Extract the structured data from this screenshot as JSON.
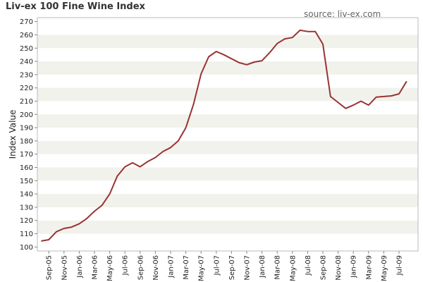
{
  "chart_data": {
    "type": "line",
    "title": "Liv-ex 100 Fine Wine Index",
    "subtitle": "source: liv-ex.com",
    "xlabel": "",
    "ylabel": "Index Value",
    "ylim": [
      97,
      273
    ],
    "yticks": [
      100,
      110,
      120,
      130,
      140,
      150,
      160,
      170,
      180,
      190,
      200,
      210,
      220,
      230,
      240,
      250,
      260,
      270
    ],
    "xtick_labels": [
      "Sep-05",
      "Nov-05",
      "Jan-06",
      "Mar-06",
      "May-06",
      "Jul-06",
      "Sep-06",
      "Nov-06",
      "Jan-07",
      "Mar-07",
      "May-07",
      "Jul-07",
      "Sep-07",
      "Nov-07",
      "Jan-08",
      "Mar-08",
      "May-08",
      "Jul-08",
      "Sep-08",
      "Nov-08",
      "Jan-09",
      "Mar-09",
      "May-09",
      "Jul-09"
    ],
    "grid": "horizontal bands",
    "legend": "none",
    "line_color": "#993333",
    "series": [
      {
        "x": [
          "Aug-05",
          "Sep-05",
          "Oct-05",
          "Nov-05",
          "Dec-05",
          "Jan-06",
          "Feb-06",
          "Mar-06",
          "Apr-06",
          "May-06",
          "Jun-06",
          "Jul-06",
          "Aug-06",
          "Sep-06",
          "Oct-06",
          "Nov-06",
          "Dec-06",
          "Jan-07",
          "Feb-07",
          "Mar-07",
          "Apr-07",
          "May-07",
          "Jun-07",
          "Jul-07",
          "Aug-07",
          "Sep-07",
          "Oct-07",
          "Nov-07",
          "Dec-07",
          "Jan-08",
          "Feb-08",
          "Mar-08",
          "Apr-08",
          "May-08",
          "Jun-08",
          "Jul-08",
          "Aug-08",
          "Sep-08",
          "Oct-08",
          "Nov-08",
          "Dec-08",
          "Jan-09",
          "Feb-09",
          "Mar-09",
          "Apr-09",
          "May-09",
          "Jun-09",
          "Jul-09",
          "Aug-09"
        ],
        "values": [
          104.5,
          105.5,
          111.5,
          114,
          115,
          117.5,
          121.5,
          127,
          131.5,
          140,
          153.5,
          160.5,
          163.5,
          160.5,
          164.5,
          167.5,
          172,
          175,
          180,
          190,
          207.5,
          230.5,
          243.5,
          247.5,
          245,
          242,
          239,
          237.5,
          239.5,
          240.5,
          246.5,
          253.5,
          257,
          258,
          263.5,
          262.5,
          262.5,
          253,
          213.5,
          209,
          204.5,
          207,
          210,
          207,
          213,
          213.5,
          214,
          215.5,
          225
        ]
      }
    ]
  }
}
